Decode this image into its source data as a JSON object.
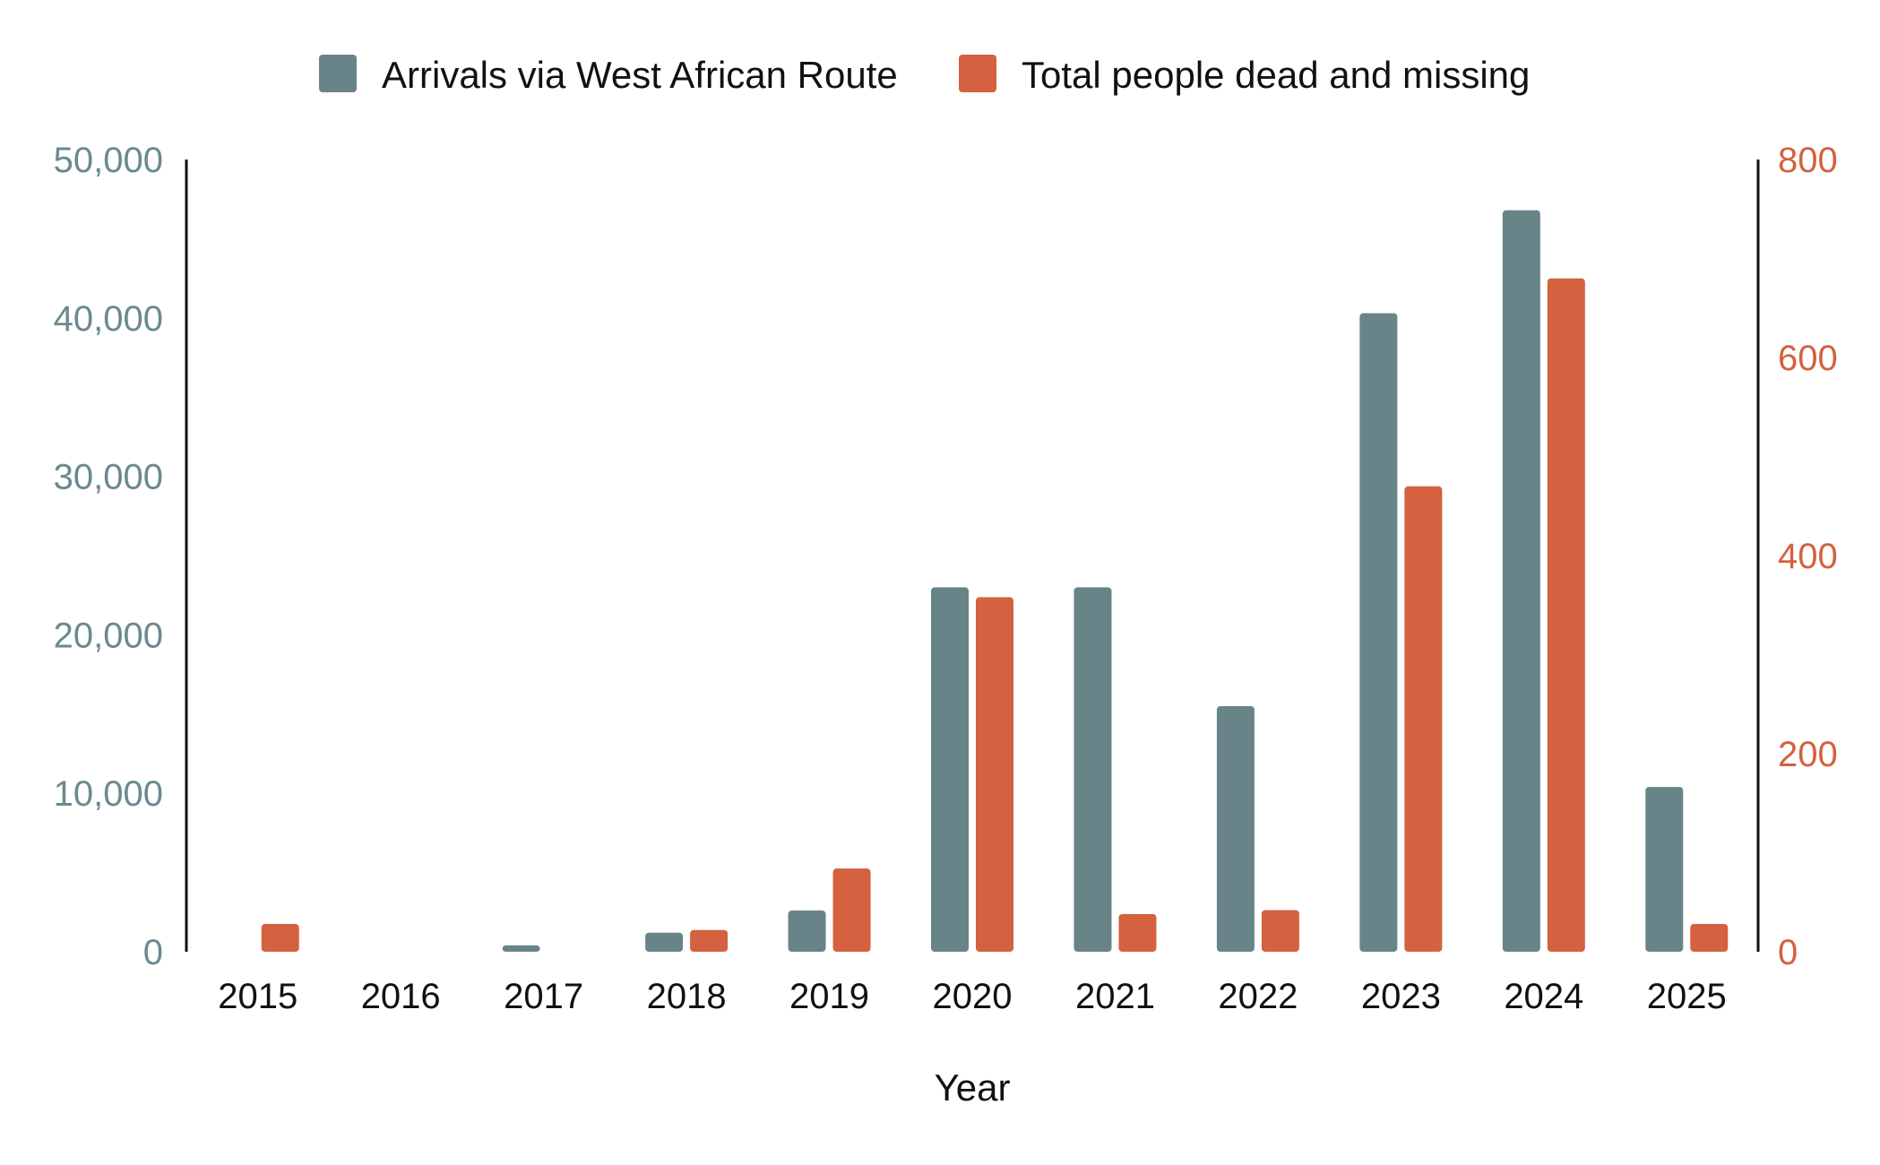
{
  "chart_data": {
    "type": "bar",
    "title": "",
    "xlabel": "Year",
    "ylabel": "",
    "y2label": "",
    "categories": [
      "2015",
      "2016",
      "2017",
      "2018",
      "2019",
      "2020",
      "2021",
      "2022",
      "2023",
      "2024",
      "2025"
    ],
    "series": [
      {
        "name": "Arrivals via West African Route",
        "axis": "left",
        "color": "#688489",
        "values": [
          0,
          0,
          400,
          1200,
          2600,
          23000,
          23000,
          15500,
          40300,
          46800,
          10400
        ]
      },
      {
        "name": "Total people dead and missing",
        "axis": "right",
        "color": "#d4613f",
        "values": [
          28,
          0,
          0,
          22,
          84,
          358,
          38,
          42,
          470,
          680,
          28
        ]
      }
    ],
    "ylim": [
      0,
      50000
    ],
    "y2lim": [
      0,
      800
    ],
    "yticks": [
      "0",
      "10,000",
      "20,000",
      "30,000",
      "40,000",
      "50,000"
    ],
    "y2ticks": [
      "0",
      "200",
      "400",
      "600",
      "800"
    ],
    "legend_position": "top-center",
    "grid": false
  }
}
